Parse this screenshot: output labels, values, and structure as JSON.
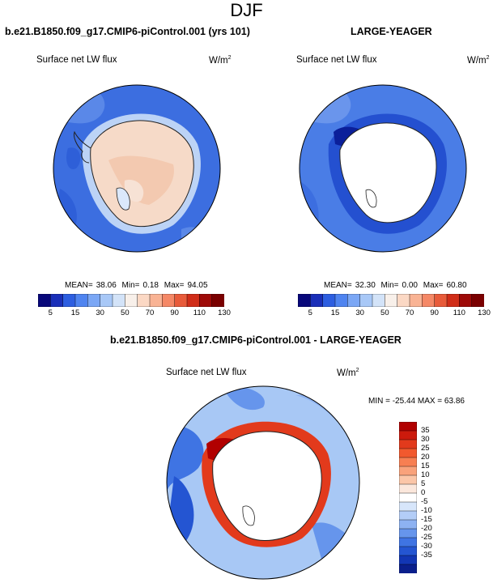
{
  "figure_title": "DJF",
  "panels": {
    "left": {
      "title": "b.e21.B1850.f09_g17.CMIP6-piControl.001 (yrs 101)",
      "variable": "Surface net LW flux",
      "units_base": "W/m",
      "units_exp": "2",
      "stats": {
        "mean_label": "MEAN=",
        "mean": "38.06",
        "min_label": "Min=",
        "min": "0.18",
        "max_label": "Max=",
        "max": "94.05"
      }
    },
    "right": {
      "title": "LARGE-YEAGER",
      "variable": "Surface net LW flux",
      "units_base": "W/m",
      "units_exp": "2",
      "stats": {
        "mean_label": "MEAN=",
        "mean": "32.30",
        "min_label": "Min=",
        "min": "0.00",
        "max_label": "Max=",
        "max": "60.80"
      }
    },
    "diff": {
      "title": "b.e21.B1850.f09_g17.CMIP6-piControl.001 - LARGE-YEAGER",
      "variable": "Surface net LW flux",
      "units_base": "W/m",
      "units_exp": "2",
      "stats_text": "MIN = -25.44  MAX =  63.86"
    }
  },
  "colorbar_top": {
    "labels": [
      "5",
      "15",
      "30",
      "50",
      "70",
      "90",
      "110",
      "130"
    ],
    "colors": [
      "#08087a",
      "#1a2fb8",
      "#2d5ee0",
      "#4f84f0",
      "#7ba7f5",
      "#a8c8f7",
      "#d3e3f8",
      "#f8f0ea",
      "#fbd8c4",
      "#f9b394",
      "#f58866",
      "#e85b3a",
      "#d02d18",
      "#9e0a08",
      "#7a0000"
    ]
  },
  "colorbar_diff": {
    "labels": [
      "35",
      "30",
      "25",
      "20",
      "15",
      "10",
      "5",
      "0",
      "-5",
      "-10",
      "-15",
      "-20",
      "-25",
      "-30",
      "-35"
    ],
    "colors": [
      "#b10000",
      "#cc1a0c",
      "#e23a1c",
      "#f2592e",
      "#f77f52",
      "#f9a27b",
      "#fbc6a8",
      "#fbe7dc",
      "#ffffff",
      "#d7e6fb",
      "#b3cdf7",
      "#8db2f2",
      "#6695ec",
      "#3f74e3",
      "#2455d2",
      "#1236b4",
      "#0a1f8c"
    ]
  }
}
